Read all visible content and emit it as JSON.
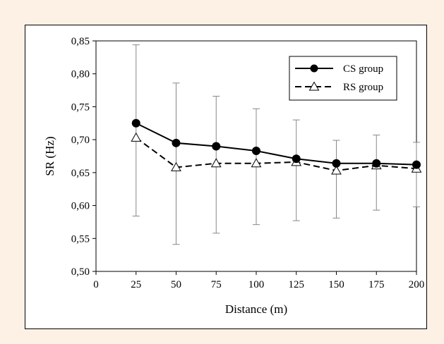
{
  "page": {
    "background_color": "#fdf0e4",
    "frame_color": "#ffffff"
  },
  "chart_data": {
    "type": "line",
    "title": "",
    "xlabel": "Distance (m)",
    "ylabel": "SR (Hz)",
    "x_ticks": [
      "0",
      "25",
      "50",
      "75",
      "100",
      "125",
      "150",
      "175",
      "200"
    ],
    "x_tick_values": [
      0,
      25,
      50,
      75,
      100,
      125,
      150,
      175,
      200
    ],
    "y_ticks": [
      "0,50",
      "0,55",
      "0,60",
      "0,65",
      "0,70",
      "0,75",
      "0,80",
      "0,85"
    ],
    "y_tick_values": [
      0.5,
      0.55,
      0.6,
      0.65,
      0.7,
      0.75,
      0.8,
      0.85
    ],
    "xlim": [
      0,
      200
    ],
    "ylim": [
      0.5,
      0.85
    ],
    "grid": false,
    "legend_position": "top-right",
    "x": [
      25,
      50,
      75,
      100,
      125,
      150,
      175,
      200
    ],
    "series": [
      {
        "name": "CS group",
        "marker": "filled-circle",
        "line_style": "solid",
        "color": "#000000",
        "values": [
          0.725,
          0.695,
          0.69,
          0.683,
          0.671,
          0.664,
          0.664,
          0.662
        ]
      },
      {
        "name": "RS group",
        "marker": "open-triangle",
        "line_style": "dashed",
        "color": "#000000",
        "values": [
          0.703,
          0.658,
          0.664,
          0.664,
          0.666,
          0.653,
          0.661,
          0.656
        ]
      }
    ],
    "error_bars": {
      "color": "#888888",
      "upper": [
        0.844,
        0.786,
        0.766,
        0.747,
        0.73,
        0.699,
        0.707,
        0.696
      ],
      "lower": [
        0.584,
        0.541,
        0.558,
        0.571,
        0.577,
        0.581,
        0.593,
        0.598
      ]
    }
  }
}
